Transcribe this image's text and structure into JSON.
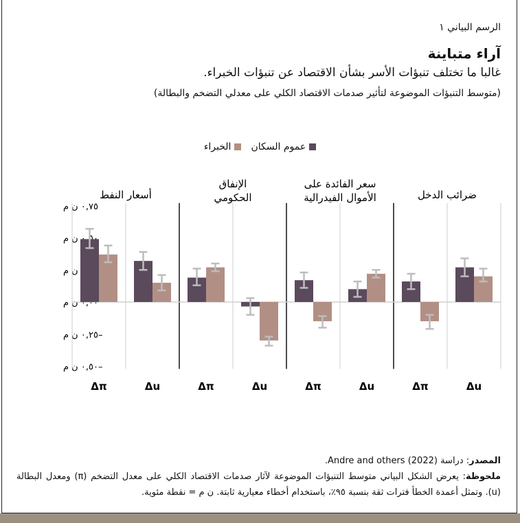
{
  "header": {
    "figure_label": "الرسم البياني ١",
    "title": "آراء متباينة",
    "subtitle": "غالبا ما تختلف تنبؤات الأسر بشأن الاقتصاد عن تنبؤات الخبراء.",
    "description": "(متوسط التنبؤات الموضوعة لتأثير صدمات الاقتصاد الكلي على معدلي التضخم والبطالة)"
  },
  "chart_data": {
    "type": "bar",
    "ylim": [
      -0.5,
      0.75
    ],
    "yticks": [
      0.75,
      0.5,
      0.25,
      0.0,
      -0.25,
      -0.5
    ],
    "ytick_labels": [
      "٠,٧٥ ن م",
      "٠,٥٠ ن م",
      "٠,٢٥ ن م",
      "٠,٠٠ ن م",
      "–٠,٢٥ ن م",
      "–٠,٥٠ ن م"
    ],
    "legend": [
      {
        "name": "عموم السكان",
        "color": "#5a4a5c"
      },
      {
        "name": "الخبراء",
        "color": "#b28f85"
      }
    ],
    "legend_placement": "top-center",
    "error_bar_color": "#bdbdbd",
    "panels": [
      {
        "label": [
          "أسعار النفط"
        ],
        "groups": [
          {
            "category": "Δπ",
            "households": {
              "value": 0.49,
              "ci": [
                0.42,
                0.57
              ]
            },
            "experts": {
              "value": 0.37,
              "ci": [
                0.31,
                0.44
              ]
            }
          },
          {
            "category": "Δu",
            "households": {
              "value": 0.32,
              "ci": [
                0.25,
                0.39
              ]
            },
            "experts": {
              "value": 0.15,
              "ci": [
                0.09,
                0.21
              ]
            }
          }
        ]
      },
      {
        "label": [
          "الإنفاق",
          "الحكومي"
        ],
        "groups": [
          {
            "category": "Δπ",
            "households": {
              "value": 0.19,
              "ci": [
                0.13,
                0.26
              ]
            },
            "experts": {
              "value": 0.27,
              "ci": [
                0.24,
                0.3
              ]
            }
          },
          {
            "category": "Δu",
            "households": {
              "value": -0.035,
              "ci": [
                -0.1,
                0.03
              ]
            },
            "experts": {
              "value": -0.3,
              "ci": [
                -0.34,
                -0.27
              ]
            }
          }
        ]
      },
      {
        "label": [
          "سعر الفائدة على",
          "الأموال الفيدرالية"
        ],
        "groups": [
          {
            "category": "Δπ",
            "households": {
              "value": 0.17,
              "ci": [
                0.11,
                0.23
              ]
            },
            "experts": {
              "value": -0.15,
              "ci": [
                -0.2,
                -0.11
              ]
            }
          },
          {
            "category": "Δu",
            "households": {
              "value": 0.1,
              "ci": [
                0.04,
                0.16
              ]
            },
            "experts": {
              "value": 0.22,
              "ci": [
                0.19,
                0.25
              ]
            }
          }
        ]
      },
      {
        "label": [
          "ضرائب الدخل"
        ],
        "groups": [
          {
            "category": "Δπ",
            "households": {
              "value": 0.16,
              "ci": [
                0.1,
                0.22
              ]
            },
            "experts": {
              "value": -0.15,
              "ci": [
                -0.21,
                -0.1
              ]
            }
          },
          {
            "category": "Δu",
            "households": {
              "value": 0.27,
              "ci": [
                0.2,
                0.34
              ]
            },
            "experts": {
              "value": 0.2,
              "ci": [
                0.16,
                0.26
              ]
            }
          }
        ]
      }
    ]
  },
  "notes": {
    "source_label": "المصدر",
    "source_text": ": دراسة (2022) Andre and others.",
    "note_label": "ملحوظة",
    "note_text": ": يعرض الشكل البياني متوسط التنبؤات الموضوعة لآثار صدمات الاقتصاد الكلي على معدل التضخم (π) ومعدل البطالة (u). وتمثل أعمدة الخطأ فترات ثقة بنسبة ٩٥٪، باستخدام أخطاء معيارية ثابتة. ن م = نقطة مئوية."
  },
  "colors": {
    "frame_bottom": "#9c9082"
  }
}
